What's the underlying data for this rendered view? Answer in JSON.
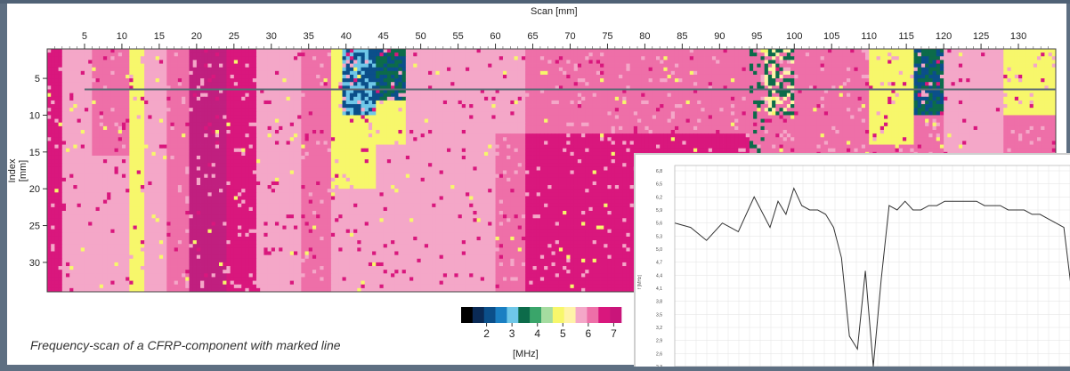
{
  "chart_data": [
    {
      "type": "heatmap",
      "xlabel": "Scan [mm]",
      "ylabel": "Index [mm]",
      "x_ticks": [
        "5",
        "10",
        "15",
        "20",
        "25",
        "30",
        "35",
        "40",
        "45",
        "50",
        "55",
        "60",
        "65",
        "70",
        "75",
        "80",
        "85",
        "90",
        "95",
        "100",
        "105",
        "110",
        "115",
        "120",
        "125",
        "130"
      ],
      "y_ticks": [
        "5",
        "10",
        "15",
        "20",
        "25",
        "30"
      ],
      "xlim": [
        0,
        135
      ],
      "ylim": [
        1,
        34
      ],
      "marked_line_index_mm": 6.5,
      "colorbar": {
        "label": "[MHz]",
        "ticks": [
          "2",
          "3",
          "4",
          "5",
          "6",
          "7"
        ],
        "colors": [
          "#000000",
          "#0a2a55",
          "#0b4f8a",
          "#1a7fc2",
          "#6fc7e8",
          "#0c6b4a",
          "#3aa56a",
          "#a5dca0",
          "#f7f76b",
          "#fff3a8",
          "#f4a7c8",
          "#ee6fa8",
          "#d9177d",
          "#c9157a"
        ]
      },
      "caption": "Frequency-scan of a CFRP-component with marked line"
    },
    {
      "type": "line",
      "ylabel": "f [MHz]",
      "y_ticks": [
        "6,8",
        "6,5",
        "6,2",
        "5,9",
        "5,6",
        "5,3",
        "5,0",
        "4,7",
        "4,4",
        "4,1",
        "3,8",
        "3,5",
        "3,2",
        "2,9",
        "2,6",
        "2,3"
      ],
      "ylim": [
        2.3,
        6.8
      ],
      "x": [
        0,
        4,
        8,
        12,
        16,
        20,
        24,
        26,
        28,
        30,
        32,
        34,
        36,
        38,
        40,
        42,
        44,
        46,
        48,
        50,
        52,
        54,
        56,
        58,
        60,
        62,
        64,
        66,
        68,
        70,
        72,
        74,
        76,
        78,
        80,
        82,
        84,
        86,
        88,
        90,
        92,
        94,
        96,
        98,
        100
      ],
      "series": [
        {
          "values": [
            5.6,
            5.5,
            5.2,
            5.6,
            5.4,
            6.2,
            5.5,
            6.1,
            5.8,
            6.4,
            6.0,
            5.9,
            5.9,
            5.8,
            5.5,
            4.8,
            3.0,
            2.7,
            4.5,
            2.3,
            4.3,
            6.0,
            5.9,
            6.1,
            5.9,
            5.9,
            6.0,
            6.0,
            6.1,
            6.1,
            6.1,
            6.1,
            6.1,
            6.0,
            6.0,
            6.0,
            5.9,
            5.9,
            5.9,
            5.8,
            5.8,
            5.7,
            5.6,
            5.5,
            4.0
          ]
        }
      ]
    }
  ]
}
